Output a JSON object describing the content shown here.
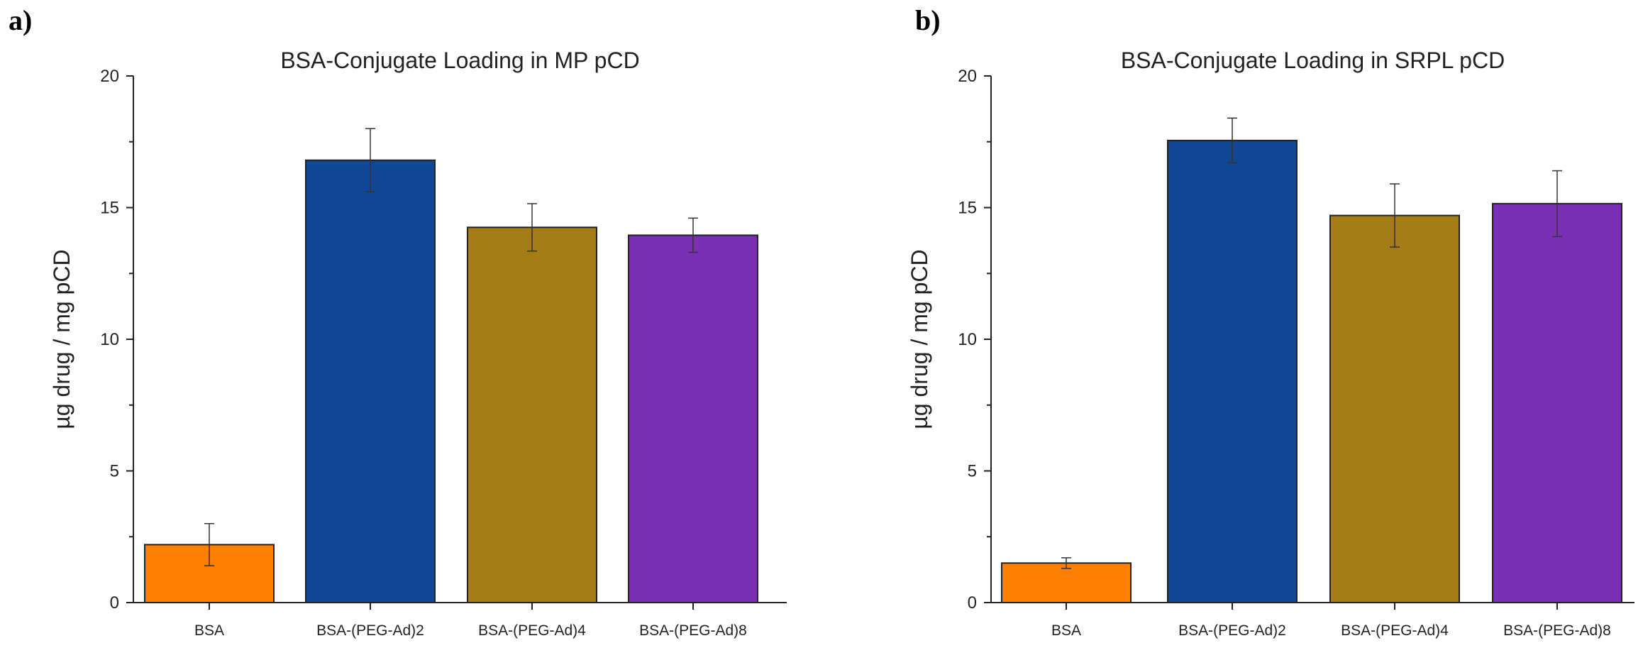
{
  "chart_data": [
    {
      "type": "bar",
      "panel_label": "a)",
      "title": "BSA-Conjugate Loading in MP pCD",
      "xlabel": "",
      "ylabel": "µg drug / mg pCD",
      "ylim": [
        0,
        20
      ],
      "yticks": [
        0,
        5,
        10,
        15,
        20
      ],
      "categories": [
        "BSA",
        "BSA-(PEG-Ad)2",
        "BSA-(PEG-Ad)4",
        "BSA-(PEG-Ad)8"
      ],
      "values": [
        2.2,
        16.8,
        14.25,
        13.95
      ],
      "errors": [
        0.8,
        1.2,
        0.9,
        0.65
      ],
      "colors": [
        "#ff8000",
        "#124796",
        "#a47b14",
        "#7b2eb6"
      ],
      "grid": false
    },
    {
      "type": "bar",
      "panel_label": "b)",
      "title": "BSA-Conjugate Loading in SRPL pCD",
      "xlabel": "",
      "ylabel": "µg drug / mg pCD",
      "ylim": [
        0,
        20
      ],
      "yticks": [
        0,
        5,
        10,
        15,
        20
      ],
      "categories": [
        "BSA",
        "BSA-(PEG-Ad)2",
        "BSA-(PEG-Ad)4",
        "BSA-(PEG-Ad)8"
      ],
      "values": [
        1.5,
        17.55,
        14.7,
        15.15
      ],
      "errors": [
        0.2,
        0.85,
        1.2,
        1.25
      ],
      "colors": [
        "#ff8000",
        "#124796",
        "#a47b14",
        "#7b2eb6"
      ],
      "grid": false
    }
  ]
}
